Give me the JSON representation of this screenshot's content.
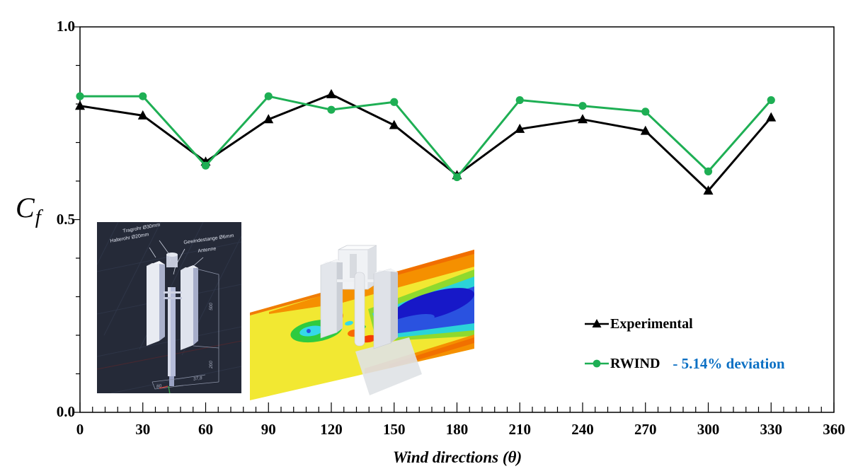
{
  "figure": {
    "y_axis": {
      "label_main": "C",
      "label_sub": "f",
      "tick_labels": [
        "1.0",
        "0.5",
        "0.0"
      ],
      "tick_values": [
        1.0,
        0.5,
        0.0
      ]
    },
    "x_axis": {
      "title": "Wind directions (θ)",
      "tick_labels": [
        "0",
        "30",
        "60",
        "90",
        "120",
        "150",
        "180",
        "210",
        "240",
        "270",
        "300",
        "330",
        "360"
      ],
      "tick_values": [
        0,
        30,
        60,
        90,
        120,
        150,
        180,
        210,
        240,
        270,
        300,
        330,
        360
      ]
    },
    "legend": {
      "experimental_label": "Experimental",
      "rwind_label": "RWIND",
      "deviation_label": "- 5.14% deviation"
    },
    "colors": {
      "experimental_series": "#000000",
      "rwind_series": "#1EAF54",
      "deviation_text": "#0C70C4",
      "axis": "#000000",
      "background": "#ffffff"
    }
  },
  "chart_data": {
    "type": "line",
    "x": [
      0,
      30,
      60,
      90,
      120,
      150,
      180,
      210,
      240,
      270,
      300,
      330
    ],
    "series": [
      {
        "name": "Experimental",
        "marker": "triangle",
        "color": "#000000",
        "values": [
          0.795,
          0.77,
          0.65,
          0.76,
          0.825,
          0.745,
          0.615,
          0.735,
          0.76,
          0.73,
          0.575,
          0.765
        ]
      },
      {
        "name": "RWIND",
        "marker": "circle",
        "color": "#1EAF54",
        "values": [
          0.82,
          0.82,
          0.64,
          0.82,
          0.785,
          0.805,
          0.61,
          0.81,
          0.795,
          0.78,
          0.625,
          0.81
        ]
      }
    ],
    "title": "",
    "xlabel": "Wind directions (θ)",
    "ylabel": "Cf",
    "xlim": [
      0,
      360
    ],
    "ylim": [
      0.0,
      1.0
    ],
    "x_major_tick_step": 30,
    "x_minor_tick_step": 6,
    "y_labeled_ticks": [
      0.0,
      0.5,
      1.0
    ],
    "y_minor_tick_step": 0.1,
    "grid": false,
    "legend_position": "inside-right",
    "annotation": "- 5.14% deviation"
  },
  "cad_inset": {
    "labels": {
      "tragrohr": "Tragrohr Ø30mm",
      "halterohr": "Halterohr Ø20mm",
      "gewindestange": "Gewindestange Ø6mm",
      "antenne": "Antenne"
    },
    "dimensions": {
      "upper_height": "500",
      "lower_height": "200",
      "width": "37,8",
      "base": "80"
    },
    "background_color": "#252a38"
  },
  "cfd_inset": {
    "colors": {
      "field_yellow": "#F2E832",
      "band_orange": "#F59000",
      "vortex_green": "#2FCB3F",
      "wake_cyan": "#2BD4D8",
      "wake_blue": "#2A52E0",
      "wake_core_blue": "#1718C8",
      "spot_red": "#F43C00",
      "model_gray": "#E6E8EC"
    }
  }
}
